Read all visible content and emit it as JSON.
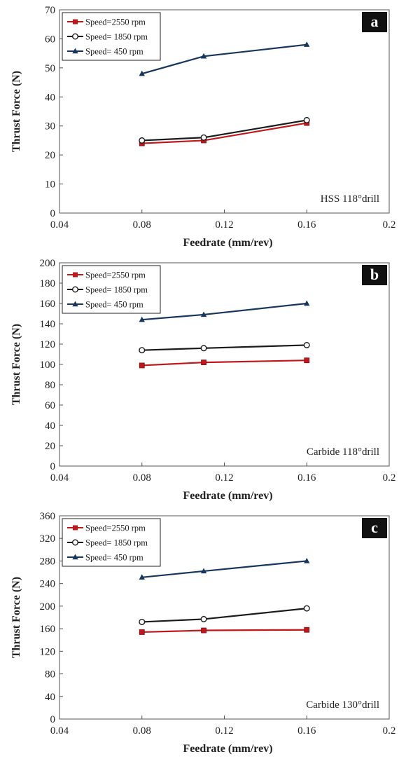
{
  "chart_data": [
    {
      "type": "line",
      "panel_label": "a",
      "annotation": "HSS 118°drill",
      "xlabel": "Feedrate (mm/rev)",
      "ylabel": "Thrust Force (N)",
      "xlim": [
        0.04,
        0.2
      ],
      "ylim": [
        0,
        70
      ],
      "xticks": [
        0.04,
        0.08,
        0.12,
        0.16,
        0.2
      ],
      "xtick_labels": [
        "0.04",
        "0.08",
        "0.12",
        "0.16",
        "0.2"
      ],
      "yticks": [
        0,
        10,
        20,
        30,
        40,
        50,
        60,
        70
      ],
      "grid": false,
      "legend_position": "top-left",
      "series": [
        {
          "name": "Speed=2550 rpm",
          "marker": "square",
          "color": "#c0171c",
          "x": [
            0.08,
            0.11,
            0.16
          ],
          "y": [
            24,
            25,
            31
          ]
        },
        {
          "name": "Speed= 1850 rpm",
          "marker": "circle",
          "color": "#1a1a1a",
          "x": [
            0.08,
            0.11,
            0.16
          ],
          "y": [
            25,
            26,
            32
          ]
        },
        {
          "name": "Speed= 450 rpm",
          "marker": "triangle",
          "color": "#17365d",
          "x": [
            0.08,
            0.11,
            0.16
          ],
          "y": [
            48,
            54,
            58
          ]
        }
      ]
    },
    {
      "type": "line",
      "panel_label": "b",
      "annotation": "Carbide 118°drill",
      "xlabel": "Feedrate (mm/rev)",
      "ylabel": "Thrust Force (N)",
      "xlim": [
        0.04,
        0.2
      ],
      "ylim": [
        0,
        200
      ],
      "xticks": [
        0.04,
        0.08,
        0.12,
        0.16,
        0.2
      ],
      "xtick_labels": [
        "0.04",
        "0.08",
        "0.12",
        "0.16",
        "0.2"
      ],
      "yticks": [
        0,
        20,
        40,
        60,
        80,
        100,
        120,
        140,
        160,
        180,
        200
      ],
      "grid": false,
      "legend_position": "top-left",
      "series": [
        {
          "name": "Speed=2550 rpm",
          "marker": "square",
          "color": "#c0171c",
          "x": [
            0.08,
            0.11,
            0.16
          ],
          "y": [
            99,
            102,
            104
          ]
        },
        {
          "name": "Speed= 1850 rpm",
          "marker": "circle",
          "color": "#1a1a1a",
          "x": [
            0.08,
            0.11,
            0.16
          ],
          "y": [
            114,
            116,
            119
          ]
        },
        {
          "name": "Speed= 450 rpm",
          "marker": "triangle",
          "color": "#17365d",
          "x": [
            0.08,
            0.11,
            0.16
          ],
          "y": [
            144,
            149,
            160
          ]
        }
      ]
    },
    {
      "type": "line",
      "panel_label": "c",
      "annotation": "Carbide 130°drill",
      "xlabel": "Feedrate (mm/rev)",
      "ylabel": "Thrust Force (N)",
      "xlim": [
        0.04,
        0.2
      ],
      "ylim": [
        0,
        360
      ],
      "xticks": [
        0.04,
        0.08,
        0.12,
        0.16,
        0.2
      ],
      "xtick_labels": [
        "0.04",
        "0.08",
        "0.12",
        "0.16",
        "0.2"
      ],
      "yticks": [
        0,
        40,
        80,
        120,
        160,
        200,
        240,
        280,
        320,
        360
      ],
      "grid": false,
      "legend_position": "top-left",
      "series": [
        {
          "name": "Speed=2550 rpm",
          "marker": "square",
          "color": "#c0171c",
          "x": [
            0.08,
            0.11,
            0.16
          ],
          "y": [
            154,
            157,
            158
          ]
        },
        {
          "name": "Speed= 1850 rpm",
          "marker": "circle",
          "color": "#1a1a1a",
          "x": [
            0.08,
            0.11,
            0.16
          ],
          "y": [
            172,
            177,
            196
          ]
        },
        {
          "name": "Speed= 450 rpm",
          "marker": "triangle",
          "color": "#17365d",
          "x": [
            0.08,
            0.11,
            0.16
          ],
          "y": [
            251,
            262,
            280
          ]
        }
      ]
    }
  ]
}
